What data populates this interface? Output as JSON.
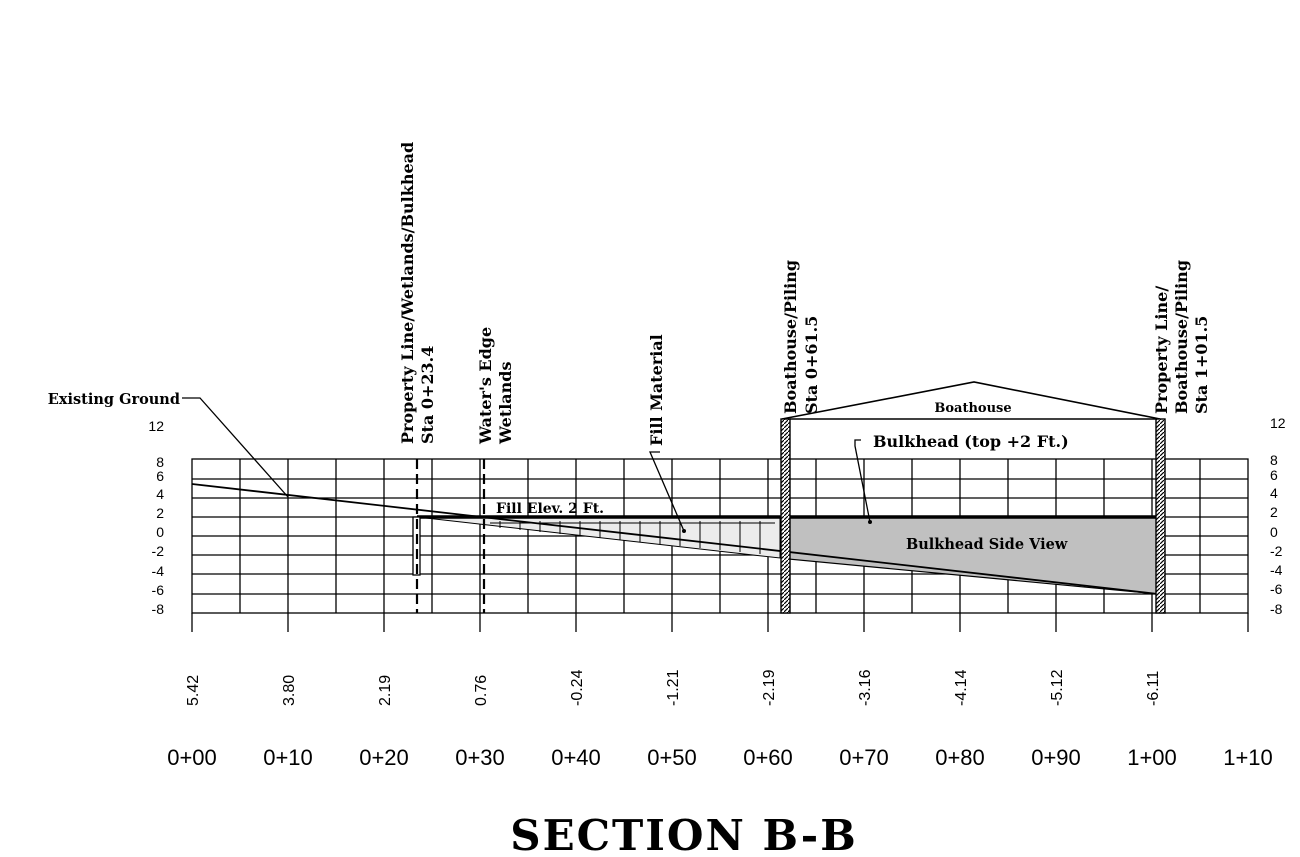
{
  "title": "SECTION B-B",
  "stations": [
    "0+00",
    "0+10",
    "0+20",
    "0+30",
    "0+40",
    "0+50",
    "0+60",
    "0+70",
    "0+80",
    "0+90",
    "1+00",
    "1+10"
  ],
  "ground_elevations": [
    "5.42",
    "3.80",
    "2.19",
    "0.76",
    "-0.24",
    "-1.21",
    "-2.19",
    "-3.16",
    "-4.14",
    "-5.12",
    "-6.11"
  ],
  "elevation_scale": {
    "left": [
      "12",
      "8",
      "6",
      "4",
      "2",
      "0",
      "-2",
      "-4",
      "-6",
      "-8"
    ],
    "right": [
      "12",
      "8",
      "6",
      "4",
      "2",
      "0",
      "-2",
      "-4",
      "-6",
      "-8"
    ]
  },
  "labels": {
    "existing_ground": "Existing Ground",
    "property_line_wetlands": "Property Line/Wetlands/Bulkhead",
    "property_line_sta": "Sta 0+23.4",
    "waters_edge": "Water's Edge",
    "wetlands": "Wetlands",
    "fill_material": "Fill Material",
    "boathouse_piling_left": "Boathouse/Piling",
    "boathouse_piling_left_sta": "Sta 0+61.5",
    "property_line_right_1": "Property Line/",
    "property_line_right_2": "Boathouse/Piling",
    "property_line_right_sta": "Sta 1+01.5",
    "boathouse": "Boathouse",
    "bulkhead_top": "Bulkhead (top +2 Ft.)",
    "fill_elev": "Fill Elev. 2 Ft.",
    "bulkhead_side_view": "Bulkhead Side View"
  },
  "colors": {
    "bulkhead_fill": "#c0c0c0",
    "line": "#000000"
  }
}
